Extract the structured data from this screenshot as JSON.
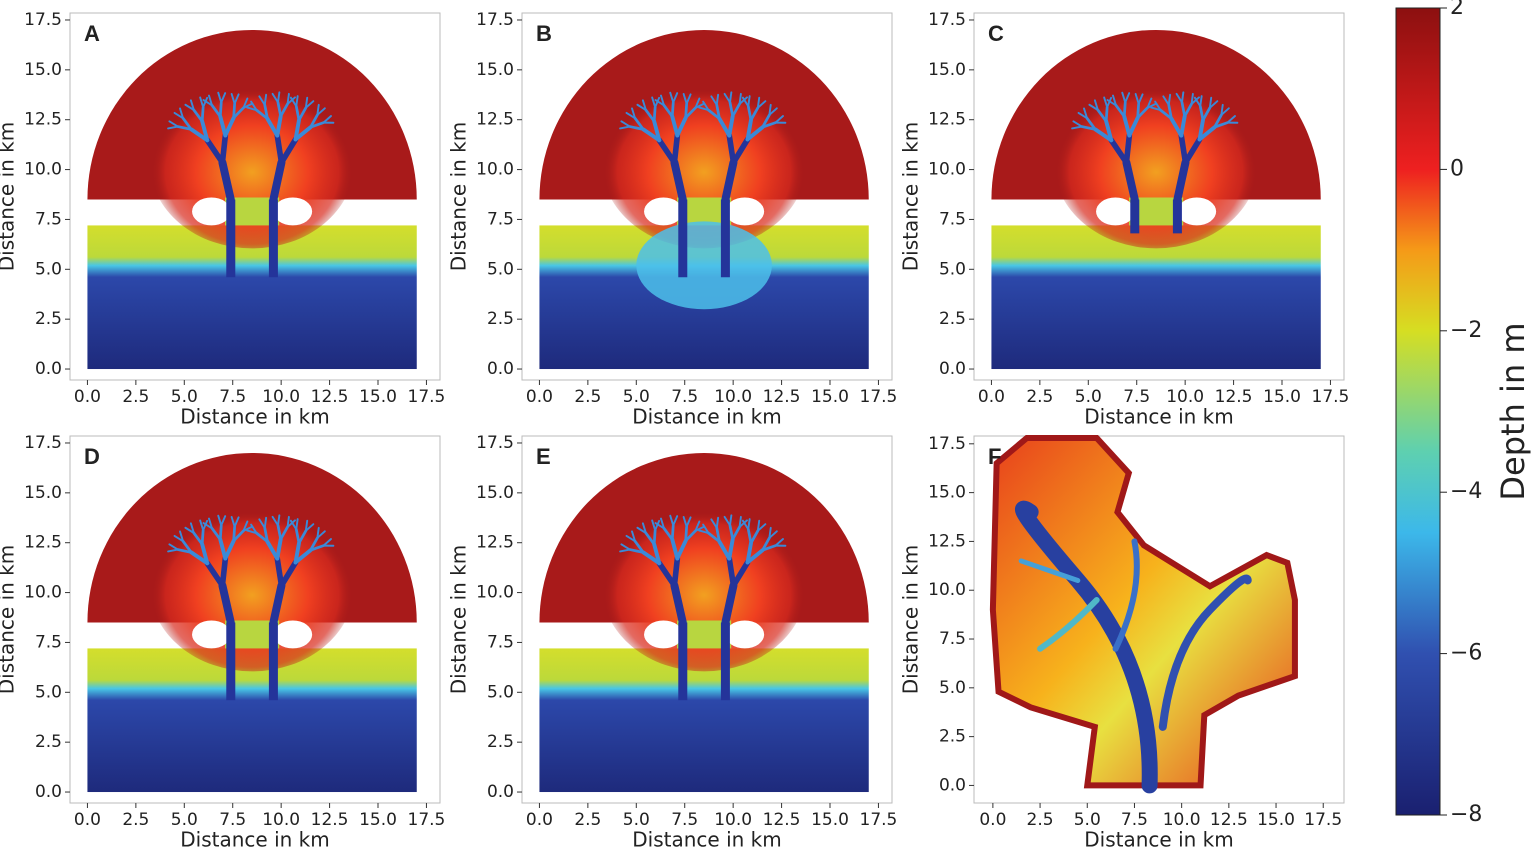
{
  "chart_data": [
    {
      "type": "image",
      "title": "A",
      "xlabel": "Distance in km",
      "ylabel": "Distance in km",
      "xlim": [
        -0.9,
        18.2
      ],
      "ylim": [
        -0.55,
        17.85
      ],
      "xticks": [
        {
          "value": 0,
          "label": "0.0"
        },
        2.5,
        {
          "value": 5,
          "label": "5.0"
        },
        7.5,
        {
          "value": 10,
          "label": "10.0"
        },
        12.5,
        {
          "value": 15,
          "label": "15.0"
        },
        17.5
      ],
      "yticks": [
        {
          "value": 0,
          "label": "0.0"
        },
        2.5,
        {
          "value": 5,
          "label": "5.0"
        },
        7.5,
        {
          "value": 10,
          "label": "10.0"
        },
        12.5,
        {
          "value": 15,
          "label": "15.0"
        },
        17.5
      ]
    },
    {
      "type": "image",
      "title": "B",
      "xlabel": "Distance in km",
      "ylabel": "Distance in km",
      "xlim": [
        -0.9,
        18.2
      ],
      "ylim": [
        -0.55,
        17.85
      ],
      "xticks": [
        {
          "value": 0,
          "label": "0.0"
        },
        2.5,
        {
          "value": 5,
          "label": "5.0"
        },
        7.5,
        {
          "value": 10,
          "label": "10.0"
        },
        12.5,
        {
          "value": 15,
          "label": "15.0"
        },
        17.5
      ],
      "yticks": [
        {
          "value": 0,
          "label": "0.0"
        },
        2.5,
        {
          "value": 5,
          "label": "5.0"
        },
        7.5,
        {
          "value": 10,
          "label": "10.0"
        },
        12.5,
        {
          "value": 15,
          "label": "15.0"
        },
        17.5
      ]
    },
    {
      "type": "image",
      "title": "C",
      "xlabel": "Distance in km",
      "ylabel": "Distance in km",
      "xlim": [
        -0.9,
        18.2
      ],
      "ylim": [
        -0.55,
        17.85
      ],
      "xticks": [
        {
          "value": 0,
          "label": "0.0"
        },
        2.5,
        {
          "value": 5,
          "label": "5.0"
        },
        7.5,
        {
          "value": 10,
          "label": "10.0"
        },
        12.5,
        {
          "value": 15,
          "label": "15.0"
        },
        17.5
      ],
      "yticks": [
        {
          "value": 0,
          "label": "0.0"
        },
        2.5,
        {
          "value": 5,
          "label": "5.0"
        },
        7.5,
        {
          "value": 10,
          "label": "10.0"
        },
        12.5,
        {
          "value": 15,
          "label": "15.0"
        },
        17.5
      ]
    },
    {
      "type": "image",
      "title": "D",
      "xlabel": "Distance in km",
      "ylabel": "Distance in km",
      "xlim": [
        -0.9,
        18.2
      ],
      "ylim": [
        -0.55,
        17.85
      ],
      "xticks": [
        {
          "value": 0,
          "label": "0.0"
        },
        2.5,
        {
          "value": 5,
          "label": "5.0"
        },
        7.5,
        {
          "value": 10,
          "label": "10.0"
        },
        12.5,
        {
          "value": 15,
          "label": "15.0"
        },
        17.5
      ],
      "yticks": [
        {
          "value": 0,
          "label": "0.0"
        },
        2.5,
        {
          "value": 5,
          "label": "5.0"
        },
        7.5,
        {
          "value": 10,
          "label": "10.0"
        },
        12.5,
        {
          "value": 15,
          "label": "15.0"
        },
        17.5
      ]
    },
    {
      "type": "image",
      "title": "E",
      "xlabel": "Distance in km",
      "ylabel": "Distance in km",
      "xlim": [
        -0.9,
        18.2
      ],
      "ylim": [
        -0.55,
        17.85
      ],
      "xticks": [
        {
          "value": 0,
          "label": "0.0"
        },
        2.5,
        {
          "value": 5,
          "label": "5.0"
        },
        7.5,
        {
          "value": 10,
          "label": "10.0"
        },
        12.5,
        {
          "value": 15,
          "label": "15.0"
        },
        17.5
      ],
      "yticks": [
        {
          "value": 0,
          "label": "0.0"
        },
        2.5,
        {
          "value": 5,
          "label": "5.0"
        },
        7.5,
        {
          "value": 10,
          "label": "10.0"
        },
        12.5,
        {
          "value": 15,
          "label": "15.0"
        },
        17.5
      ]
    },
    {
      "type": "image",
      "title": "F",
      "xlabel": "Distance in km",
      "ylabel": "Distance in km",
      "xlim": [
        -1.0,
        18.6
      ],
      "ylim": [
        -0.9,
        17.9
      ],
      "xticks": [
        {
          "value": 0,
          "label": "0.0"
        },
        2.5,
        {
          "value": 5,
          "label": "5.0"
        },
        7.5,
        {
          "value": 10,
          "label": "10.0"
        },
        12.5,
        {
          "value": 15,
          "label": "15.0"
        },
        17.5
      ],
      "yticks": [
        {
          "value": 0,
          "label": "0.0"
        },
        2.5,
        {
          "value": 5,
          "label": "5.0"
        },
        7.5,
        {
          "value": 10,
          "label": "10.0"
        },
        12.5,
        {
          "value": 15,
          "label": "15.0"
        },
        17.5
      ]
    },
    {
      "type": "colorbar",
      "label": "Depth in m",
      "ylim": [
        -8,
        2
      ],
      "yticks": [
        2,
        {
          "value": 0,
          "label": "0"
        },
        {
          "value": -2,
          "label": "−2"
        },
        {
          "value": -4,
          "label": "−4"
        },
        {
          "value": -6,
          "label": "−6"
        },
        {
          "value": -8,
          "label": "−8"
        }
      ]
    }
  ]
}
